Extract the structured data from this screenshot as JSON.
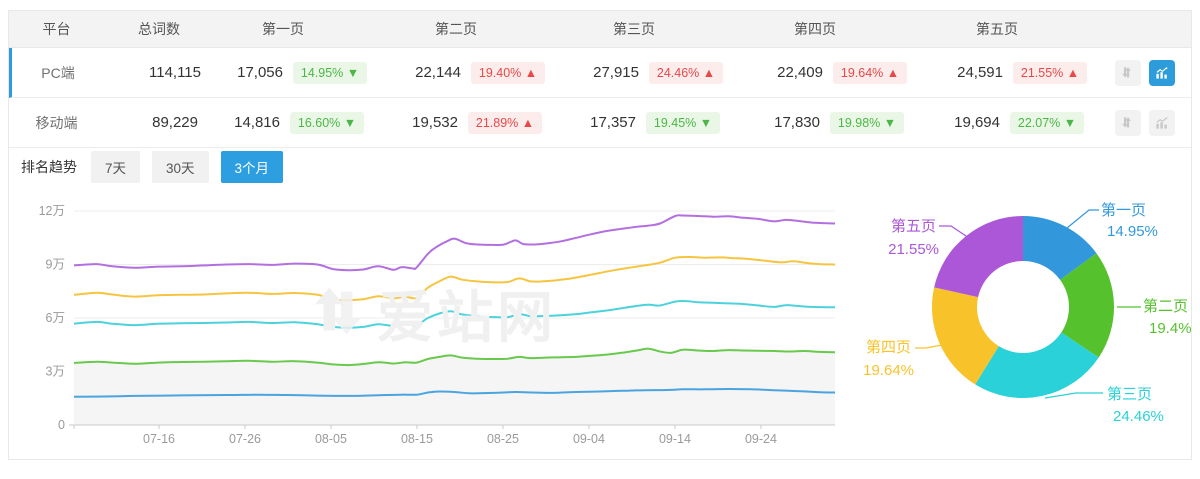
{
  "accent_color": "#2d9cdb",
  "status_colors": {
    "up_red": "#e74848",
    "down_green": "#4cb648"
  },
  "table": {
    "headers": [
      "平台",
      "总词数",
      "第一页",
      "第二页",
      "第三页",
      "第四页",
      "第五页"
    ],
    "rows": [
      {
        "platform": "PC端",
        "total": "114,115",
        "selected": true,
        "pages": [
          {
            "count": "17,056",
            "badge": "14.95% ▼",
            "cls": "badge down"
          },
          {
            "count": "22,144",
            "badge": "19.40% ▲",
            "cls": "badge up"
          },
          {
            "count": "27,915",
            "badge": "24.46% ▲",
            "cls": "badge up"
          },
          {
            "count": "22,409",
            "badge": "19.64% ▲",
            "cls": "badge up"
          },
          {
            "count": "24,591",
            "badge": "21.55% ▲",
            "cls": "badge up"
          }
        ]
      },
      {
        "platform": "移动端",
        "total": "89,229",
        "selected": false,
        "pages": [
          {
            "count": "14,816",
            "badge": "16.60% ▼",
            "cls": "badge down"
          },
          {
            "count": "19,532",
            "badge": "21.89% ▲",
            "cls": "badge up"
          },
          {
            "count": "17,357",
            "badge": "19.45% ▼",
            "cls": "badge down"
          },
          {
            "count": "17,830",
            "badge": "19.98% ▼",
            "cls": "badge down"
          },
          {
            "count": "19,694",
            "badge": "22.07% ▼",
            "cls": "badge down"
          }
        ]
      }
    ]
  },
  "icons": {
    "sort": "sort-arrows",
    "chart": "trend-bar-chart"
  },
  "trend": {
    "label": "排名趋势",
    "tabs": [
      {
        "label": "7天",
        "active": false
      },
      {
        "label": "30天",
        "active": false
      },
      {
        "label": "3个月",
        "active": true
      }
    ]
  },
  "watermark": "爱站网",
  "chart_data": [
    {
      "type": "line",
      "title": "排名趋势(3个月)",
      "x_ticks": [
        "07-16",
        "07-26",
        "08-05",
        "08-15",
        "08-25",
        "09-04",
        "09-14",
        "09-24"
      ],
      "y_ticks": [
        "0",
        "3万",
        "6万",
        "9万",
        "12万"
      ],
      "ylim": [
        0,
        120000
      ],
      "y_unit": "万",
      "grid": true,
      "legend_position": "none",
      "series": [
        {
          "name": "purple-line",
          "color": "#b36fe0",
          "points": [
            [
              0,
              8.95
            ],
            [
              0.03,
              9.02
            ],
            [
              0.05,
              8.9
            ],
            [
              0.08,
              8.82
            ],
            [
              0.11,
              8.88
            ],
            [
              0.14,
              8.9
            ],
            [
              0.17,
              8.95
            ],
            [
              0.2,
              9.0
            ],
            [
              0.23,
              9.02
            ],
            [
              0.26,
              8.98
            ],
            [
              0.29,
              9.05
            ],
            [
              0.32,
              9.0
            ],
            [
              0.34,
              8.75
            ],
            [
              0.36,
              8.68
            ],
            [
              0.38,
              8.72
            ],
            [
              0.4,
              8.9
            ],
            [
              0.42,
              8.7
            ],
            [
              0.43,
              8.85
            ],
            [
              0.445,
              8.78
            ],
            [
              0.45,
              8.82
            ],
            [
              0.465,
              9.6
            ],
            [
              0.475,
              9.95
            ],
            [
              0.49,
              10.3
            ],
            [
              0.5,
              10.45
            ],
            [
              0.515,
              10.2
            ],
            [
              0.53,
              10.12
            ],
            [
              0.55,
              10.1
            ],
            [
              0.565,
              10.12
            ],
            [
              0.58,
              10.35
            ],
            [
              0.59,
              10.15
            ],
            [
              0.605,
              10.12
            ],
            [
              0.62,
              10.18
            ],
            [
              0.64,
              10.3
            ],
            [
              0.66,
              10.5
            ],
            [
              0.68,
              10.7
            ],
            [
              0.7,
              10.88
            ],
            [
              0.72,
              11.0
            ],
            [
              0.74,
              11.12
            ],
            [
              0.755,
              11.18
            ],
            [
              0.77,
              11.3
            ],
            [
              0.79,
              11.72
            ],
            [
              0.8,
              11.75
            ],
            [
              0.82,
              11.72
            ],
            [
              0.84,
              11.68
            ],
            [
              0.86,
              11.7
            ],
            [
              0.88,
              11.62
            ],
            [
              0.9,
              11.55
            ],
            [
              0.92,
              11.42
            ],
            [
              0.935,
              11.5
            ],
            [
              0.95,
              11.45
            ],
            [
              0.97,
              11.35
            ],
            [
              1,
              11.3
            ]
          ]
        },
        {
          "name": "yellow-line",
          "color": "#f7c440",
          "points": [
            [
              0,
              7.3
            ],
            [
              0.03,
              7.42
            ],
            [
              0.05,
              7.32
            ],
            [
              0.08,
              7.2
            ],
            [
              0.11,
              7.28
            ],
            [
              0.14,
              7.3
            ],
            [
              0.17,
              7.32
            ],
            [
              0.2,
              7.38
            ],
            [
              0.23,
              7.42
            ],
            [
              0.26,
              7.35
            ],
            [
              0.29,
              7.4
            ],
            [
              0.32,
              7.3
            ],
            [
              0.34,
              7.05
            ],
            [
              0.36,
              7.0
            ],
            [
              0.38,
              7.05
            ],
            [
              0.4,
              7.22
            ],
            [
              0.42,
              7.1
            ],
            [
              0.435,
              7.2
            ],
            [
              0.45,
              7.12
            ],
            [
              0.465,
              7.7
            ],
            [
              0.48,
              8.05
            ],
            [
              0.495,
              8.32
            ],
            [
              0.51,
              8.15
            ],
            [
              0.53,
              8.05
            ],
            [
              0.55,
              8.0
            ],
            [
              0.57,
              8.02
            ],
            [
              0.585,
              8.22
            ],
            [
              0.6,
              8.05
            ],
            [
              0.615,
              8.05
            ],
            [
              0.63,
              8.1
            ],
            [
              0.65,
              8.2
            ],
            [
              0.67,
              8.35
            ],
            [
              0.69,
              8.52
            ],
            [
              0.71,
              8.68
            ],
            [
              0.73,
              8.82
            ],
            [
              0.75,
              8.95
            ],
            [
              0.77,
              9.1
            ],
            [
              0.79,
              9.38
            ],
            [
              0.81,
              9.42
            ],
            [
              0.83,
              9.38
            ],
            [
              0.85,
              9.4
            ],
            [
              0.87,
              9.35
            ],
            [
              0.89,
              9.3
            ],
            [
              0.91,
              9.2
            ],
            [
              0.93,
              9.12
            ],
            [
              0.945,
              9.18
            ],
            [
              0.96,
              9.1
            ],
            [
              0.98,
              9.02
            ],
            [
              1,
              9.0
            ]
          ]
        },
        {
          "name": "cyan-line",
          "color": "#4cd2dd",
          "points": [
            [
              0,
              5.68
            ],
            [
              0.03,
              5.78
            ],
            [
              0.05,
              5.68
            ],
            [
              0.08,
              5.6
            ],
            [
              0.11,
              5.68
            ],
            [
              0.14,
              5.7
            ],
            [
              0.17,
              5.72
            ],
            [
              0.2,
              5.75
            ],
            [
              0.23,
              5.78
            ],
            [
              0.26,
              5.72
            ],
            [
              0.29,
              5.76
            ],
            [
              0.32,
              5.65
            ],
            [
              0.34,
              5.5
            ],
            [
              0.36,
              5.45
            ],
            [
              0.38,
              5.5
            ],
            [
              0.4,
              5.65
            ],
            [
              0.42,
              5.55
            ],
            [
              0.435,
              5.65
            ],
            [
              0.45,
              5.6
            ],
            [
              0.465,
              6.0
            ],
            [
              0.48,
              6.25
            ],
            [
              0.495,
              6.38
            ],
            [
              0.51,
              6.2
            ],
            [
              0.53,
              6.1
            ],
            [
              0.55,
              6.05
            ],
            [
              0.57,
              6.05
            ],
            [
              0.585,
              6.22
            ],
            [
              0.6,
              6.1
            ],
            [
              0.62,
              6.12
            ],
            [
              0.64,
              6.15
            ],
            [
              0.66,
              6.22
            ],
            [
              0.68,
              6.32
            ],
            [
              0.7,
              6.42
            ],
            [
              0.72,
              6.55
            ],
            [
              0.74,
              6.68
            ],
            [
              0.755,
              6.75
            ],
            [
              0.77,
              6.7
            ],
            [
              0.79,
              6.92
            ],
            [
              0.805,
              6.95
            ],
            [
              0.82,
              6.88
            ],
            [
              0.84,
              6.85
            ],
            [
              0.86,
              6.82
            ],
            [
              0.88,
              6.78
            ],
            [
              0.9,
              6.7
            ],
            [
              0.92,
              6.62
            ],
            [
              0.935,
              6.72
            ],
            [
              0.95,
              6.68
            ],
            [
              0.97,
              6.62
            ],
            [
              1,
              6.6
            ]
          ]
        },
        {
          "name": "green-line",
          "color": "#68c94c",
          "fill": "#f5f5f5",
          "points": [
            [
              0,
              3.48
            ],
            [
              0.03,
              3.55
            ],
            [
              0.05,
              3.5
            ],
            [
              0.08,
              3.44
            ],
            [
              0.11,
              3.5
            ],
            [
              0.14,
              3.53
            ],
            [
              0.17,
              3.55
            ],
            [
              0.2,
              3.58
            ],
            [
              0.23,
              3.6
            ],
            [
              0.26,
              3.55
            ],
            [
              0.29,
              3.58
            ],
            [
              0.32,
              3.5
            ],
            [
              0.34,
              3.4
            ],
            [
              0.36,
              3.36
            ],
            [
              0.38,
              3.42
            ],
            [
              0.4,
              3.52
            ],
            [
              0.42,
              3.45
            ],
            [
              0.435,
              3.52
            ],
            [
              0.45,
              3.5
            ],
            [
              0.465,
              3.7
            ],
            [
              0.48,
              3.82
            ],
            [
              0.495,
              3.9
            ],
            [
              0.51,
              3.78
            ],
            [
              0.53,
              3.72
            ],
            [
              0.55,
              3.7
            ],
            [
              0.57,
              3.72
            ],
            [
              0.585,
              3.82
            ],
            [
              0.6,
              3.75
            ],
            [
              0.62,
              3.78
            ],
            [
              0.64,
              3.8
            ],
            [
              0.66,
              3.82
            ],
            [
              0.68,
              3.88
            ],
            [
              0.7,
              3.95
            ],
            [
              0.72,
              4.05
            ],
            [
              0.74,
              4.18
            ],
            [
              0.755,
              4.28
            ],
            [
              0.77,
              4.12
            ],
            [
              0.785,
              4.05
            ],
            [
              0.8,
              4.22
            ],
            [
              0.82,
              4.18
            ],
            [
              0.84,
              4.15
            ],
            [
              0.86,
              4.2
            ],
            [
              0.88,
              4.18
            ],
            [
              0.9,
              4.16
            ],
            [
              0.92,
              4.15
            ],
            [
              0.94,
              4.12
            ],
            [
              0.96,
              4.15
            ],
            [
              0.98,
              4.1
            ],
            [
              1,
              4.08
            ]
          ]
        },
        {
          "name": "blue-line",
          "color": "#4aa4e0",
          "points": [
            [
              0,
              1.58
            ],
            [
              0.04,
              1.6
            ],
            [
              0.08,
              1.63
            ],
            [
              0.12,
              1.65
            ],
            [
              0.16,
              1.67
            ],
            [
              0.2,
              1.68
            ],
            [
              0.24,
              1.7
            ],
            [
              0.28,
              1.68
            ],
            [
              0.32,
              1.65
            ],
            [
              0.36,
              1.63
            ],
            [
              0.4,
              1.67
            ],
            [
              0.43,
              1.7
            ],
            [
              0.45,
              1.7
            ],
            [
              0.465,
              1.82
            ],
            [
              0.48,
              1.88
            ],
            [
              0.5,
              1.85
            ],
            [
              0.52,
              1.78
            ],
            [
              0.55,
              1.8
            ],
            [
              0.58,
              1.85
            ],
            [
              0.6,
              1.82
            ],
            [
              0.63,
              1.8
            ],
            [
              0.66,
              1.85
            ],
            [
              0.69,
              1.88
            ],
            [
              0.72,
              1.92
            ],
            [
              0.75,
              1.95
            ],
            [
              0.78,
              1.96
            ],
            [
              0.8,
              2.0
            ],
            [
              0.83,
              2.0
            ],
            [
              0.86,
              2.02
            ],
            [
              0.89,
              2.0
            ],
            [
              0.92,
              1.95
            ],
            [
              0.95,
              1.9
            ],
            [
              0.98,
              1.84
            ],
            [
              1,
              1.82
            ]
          ]
        }
      ]
    },
    {
      "type": "pie",
      "style": "donut",
      "inner_radius_ratio": 0.5,
      "slices": [
        {
          "label": "第一页",
          "value": 14.95,
          "display": "14.95%",
          "color": "#3398db"
        },
        {
          "label": "第二页",
          "value": 19.4,
          "display": "19.4%",
          "color": "#55c22d"
        },
        {
          "label": "第三页",
          "value": 24.46,
          "display": "24.46%",
          "color": "#2ad1d8"
        },
        {
          "label": "第四页",
          "value": 19.64,
          "display": "19.64%",
          "color": "#f8c32a"
        },
        {
          "label": "第五页",
          "value": 21.55,
          "display": "21.55%",
          "color": "#ab57d8"
        }
      ]
    }
  ]
}
